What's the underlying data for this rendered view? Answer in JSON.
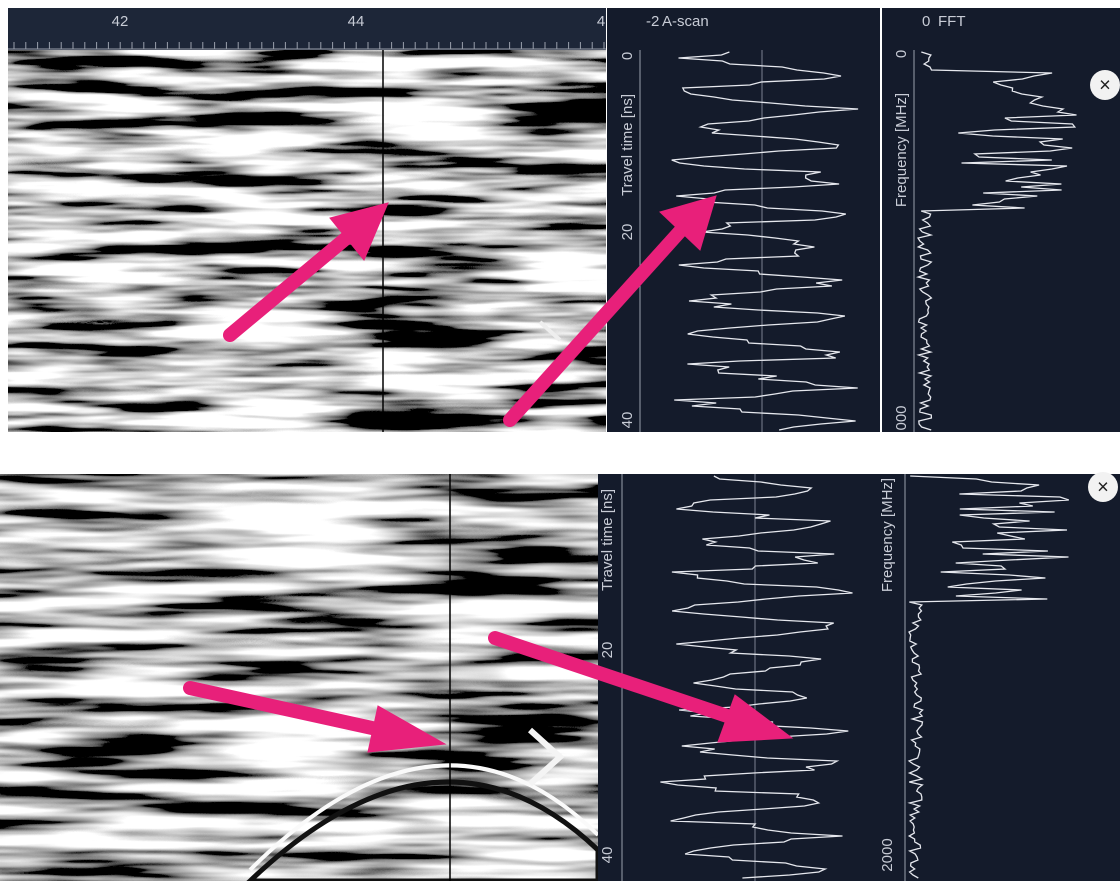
{
  "top": {
    "ruler_ticks": [
      "42",
      "44",
      "4"
    ],
    "ascan": {
      "range_label": "-2",
      "title": "A-scan",
      "axis_label": "Travel time [ns]",
      "ticks": [
        "0",
        "20",
        "40"
      ]
    },
    "fft": {
      "range_label": "0",
      "title": "FFT",
      "axis_label": "Frequency [MHz]",
      "ticks": [
        "0",
        "000"
      ]
    },
    "close": "×"
  },
  "bottom": {
    "ascan": {
      "axis_label": "Travel time [ns]",
      "ticks": [
        "20",
        "40"
      ]
    },
    "fft": {
      "axis_label": "Frequency [MHz]",
      "ticks": [
        "2000"
      ]
    },
    "close": "×"
  }
}
